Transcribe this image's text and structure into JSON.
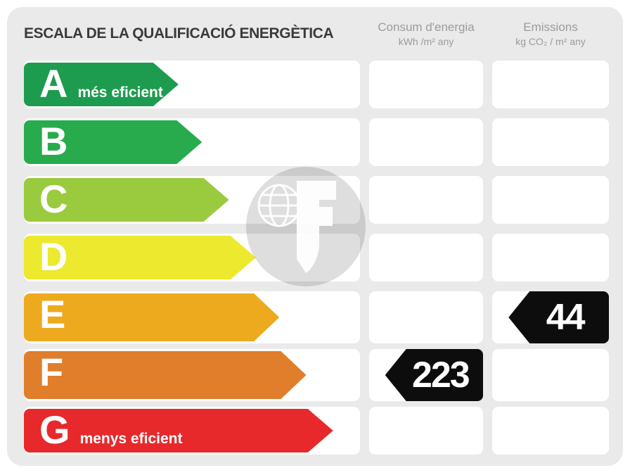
{
  "title": "ESCALA DE LA QUALIFICACIÓ ENERGÈTICA",
  "columns": {
    "consum": {
      "label": "Consum d'energia",
      "units": "kWh /m² any"
    },
    "emissions": {
      "label": "Emissions",
      "units": "kg CO₂ / m² any"
    }
  },
  "colors": {
    "page_bg": "#ffffff",
    "card_bg": "#e9eae9",
    "cell_bg": "#ffffff",
    "badge_bg": "#0d0d0d",
    "badge_text": "#ffffff",
    "title_text": "#3a3a3a",
    "header_text": "#9b9b9b",
    "bar_text": "#ffffff"
  },
  "bands": [
    {
      "letter": "A",
      "note": "més eficient",
      "color": "#1d9b4f",
      "width_pct": 46,
      "consum": null,
      "emissions": null
    },
    {
      "letter": "B",
      "note": "",
      "color": "#28ab4d",
      "width_pct": 53,
      "consum": null,
      "emissions": null
    },
    {
      "letter": "C",
      "note": "",
      "color": "#9aca3e",
      "width_pct": 61,
      "consum": null,
      "emissions": null
    },
    {
      "letter": "D",
      "note": "",
      "color": "#ece92f",
      "width_pct": 69,
      "consum": null,
      "emissions": null
    },
    {
      "letter": "E",
      "note": "",
      "color": "#edaa1f",
      "width_pct": 76,
      "consum": null,
      "emissions": "44"
    },
    {
      "letter": "F",
      "note": "",
      "color": "#e07e2c",
      "width_pct": 84,
      "consum": "223",
      "emissions": null
    },
    {
      "letter": "G",
      "note": "menys eficient",
      "color": "#e7292c",
      "width_pct": 92,
      "consum": null,
      "emissions": null
    }
  ],
  "watermark": {
    "icon": "globe-f-logo"
  },
  "chart_data": {
    "type": "bar",
    "title": "ESCALA DE LA QUALIFICACIÓ ENERGÈTICA",
    "categories": [
      "A",
      "B",
      "C",
      "D",
      "E",
      "F",
      "G"
    ],
    "category_notes": {
      "A": "més eficient",
      "G": "menys eficient"
    },
    "bar_relative_widths_pct": [
      46,
      53,
      61,
      69,
      76,
      84,
      92
    ],
    "series": [
      {
        "name": "Consum d'energia (kWh/m² any)",
        "values": [
          null,
          null,
          null,
          null,
          null,
          223,
          null
        ]
      },
      {
        "name": "Emissions (kg CO₂/m² any)",
        "values": [
          null,
          null,
          null,
          null,
          44,
          null,
          null
        ]
      }
    ],
    "rated_band_consum": "F",
    "rated_band_emissions": "E",
    "legend_position": "top",
    "grid": false
  }
}
